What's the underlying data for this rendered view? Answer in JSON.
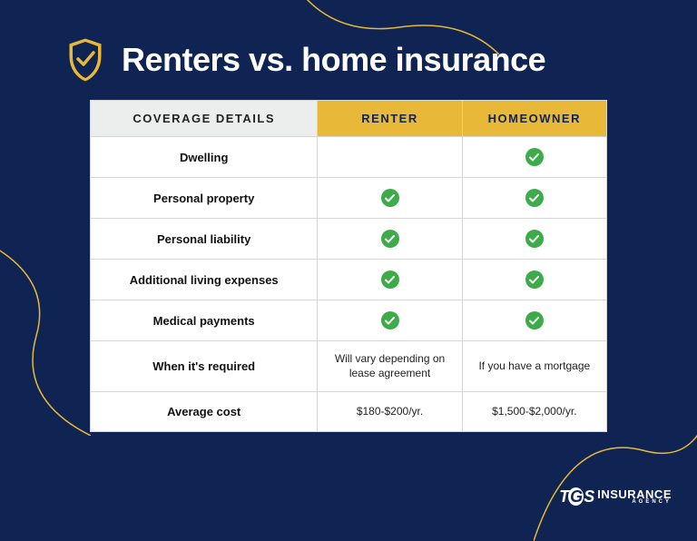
{
  "colors": {
    "background": "#0f2452",
    "accent": "#e8b838",
    "header_bg": "#eceeee",
    "check_green": "#3eab4b",
    "border": "#d6d6d6",
    "text_white": "#ffffff",
    "text_dark": "#111111"
  },
  "title": "Renters vs. home insurance",
  "table": {
    "columns": [
      "COVERAGE DETAILS",
      "RENTER",
      "HOMEOWNER"
    ],
    "rows": [
      {
        "label": "Dwelling",
        "renter": {
          "type": "blank"
        },
        "homeowner": {
          "type": "check"
        }
      },
      {
        "label": "Personal property",
        "renter": {
          "type": "check"
        },
        "homeowner": {
          "type": "check"
        }
      },
      {
        "label": "Personal liability",
        "renter": {
          "type": "check"
        },
        "homeowner": {
          "type": "check"
        }
      },
      {
        "label": "Additional living expenses",
        "renter": {
          "type": "check"
        },
        "homeowner": {
          "type": "check"
        }
      },
      {
        "label": "Medical payments",
        "renter": {
          "type": "check"
        },
        "homeowner": {
          "type": "check"
        }
      },
      {
        "label": "When it's required",
        "renter": {
          "type": "text",
          "value": "Will vary depending on lease agreement"
        },
        "homeowner": {
          "type": "text",
          "value": "If you have a mortgage"
        }
      },
      {
        "label": "Average cost",
        "renter": {
          "type": "text",
          "value": "$180-$200/yr."
        },
        "homeowner": {
          "type": "text",
          "value": "$1,500-$2,000/yr."
        }
      }
    ]
  },
  "logo": {
    "mark": "TGS",
    "line1": "INSURANCE",
    "line2": "AGENCY"
  }
}
